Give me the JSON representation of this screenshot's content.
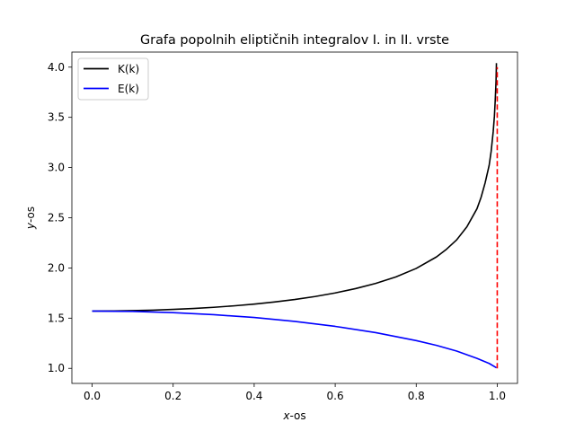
{
  "chart_data": {
    "type": "line",
    "title": "Grafa popolnih eliptičnih integralov I. in II. vrste",
    "xlabel": {
      "italic": "x",
      "rest": "-os"
    },
    "ylabel": {
      "italic": "y",
      "rest": "-os"
    },
    "xlim": [
      -0.05,
      1.05
    ],
    "ylim": [
      0.85,
      4.15
    ],
    "xticks": [
      0.0,
      0.2,
      0.4,
      0.6,
      0.8,
      1.0
    ],
    "xtick_labels": [
      "0.0",
      "0.2",
      "0.4",
      "0.6",
      "0.8",
      "1.0"
    ],
    "yticks": [
      1.0,
      1.5,
      2.0,
      2.5,
      3.0,
      3.5,
      4.0
    ],
    "ytick_labels": [
      "1.0",
      "1.5",
      "2.0",
      "2.5",
      "3.0",
      "3.5",
      "4.0"
    ],
    "grid": false,
    "legend_position": "top-left",
    "series": [
      {
        "name": "K(k)",
        "color": "#000000",
        "style": "solid",
        "x": [
          0,
          0.05,
          0.1,
          0.15,
          0.2,
          0.25,
          0.3,
          0.35,
          0.4,
          0.45,
          0.5,
          0.55,
          0.6,
          0.65,
          0.7,
          0.75,
          0.8,
          0.85,
          0.875,
          0.9,
          0.925,
          0.95,
          0.96,
          0.97,
          0.98,
          0.985,
          0.99,
          0.993,
          0.995,
          0.997,
          0.998
        ],
        "y": [
          1.5708,
          1.5718,
          1.5747,
          1.5797,
          1.5869,
          1.5962,
          1.608,
          1.6225,
          1.64,
          1.6609,
          1.6858,
          1.7153,
          1.7508,
          1.794,
          1.8457,
          1.911,
          1.9953,
          2.1099,
          2.1874,
          2.2805,
          2.4095,
          2.59,
          2.7024,
          2.846,
          3.0216,
          3.1623,
          3.3566,
          3.512,
          3.6689,
          3.8555,
          4.04
        ]
      },
      {
        "name": "E(k)",
        "color": "#0000ff",
        "style": "solid",
        "x": [
          0,
          0.1,
          0.2,
          0.3,
          0.4,
          0.5,
          0.6,
          0.7,
          0.8,
          0.85,
          0.9,
          0.95,
          0.98,
          0.998
        ],
        "y": [
          1.5708,
          1.5669,
          1.555,
          1.5348,
          1.5064,
          1.4675,
          1.4181,
          1.3556,
          1.2763,
          1.2291,
          1.1717,
          1.0997,
          1.049,
          1.006
        ]
      },
      {
        "name": "",
        "color": "#ff0000",
        "style": "dashed",
        "x": [
          1.0,
          1.0
        ],
        "y": [
          1.0,
          4.0
        ]
      }
    ]
  }
}
